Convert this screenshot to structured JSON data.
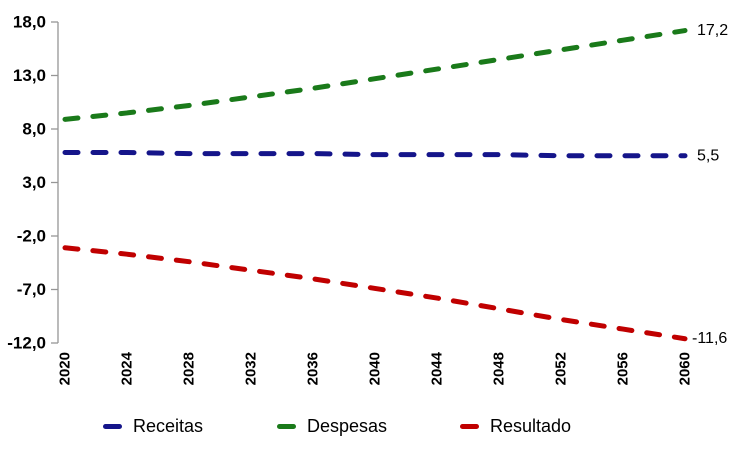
{
  "figure": {
    "background": "#ffffff"
  },
  "chart_data": {
    "type": "line",
    "title": "",
    "xlabel": "",
    "ylabel": "",
    "line_style": "dashed",
    "grid": false,
    "legend_position": "bottom",
    "axis_color": "#969696",
    "text_color": "#000000",
    "x": [
      2020,
      2024,
      2028,
      2032,
      2036,
      2040,
      2044,
      2048,
      2052,
      2056,
      2060
    ],
    "x_tick_labels": [
      "2020",
      "2024",
      "2028",
      "2032",
      "2036",
      "2040",
      "2044",
      "2048",
      "2052",
      "2056",
      "2060"
    ],
    "xlim": [
      2020,
      2060
    ],
    "ylim": [
      -12,
      18
    ],
    "y_ticks": [
      18,
      13,
      8,
      3,
      -2,
      -7,
      -12
    ],
    "y_tick_labels": [
      "18,0",
      "13,0",
      "8,0",
      "3,0",
      "-2,0",
      "-7,0",
      "-12,0"
    ],
    "series": [
      {
        "name": "Receitas",
        "color": "#15158a",
        "values": [
          5.8,
          5.8,
          5.7,
          5.7,
          5.7,
          5.6,
          5.6,
          5.6,
          5.5,
          5.5,
          5.5
        ],
        "end_label": "5,5"
      },
      {
        "name": "Despesas",
        "color": "#1a7a1a",
        "values": [
          8.9,
          9.5,
          10.2,
          11.0,
          11.8,
          12.7,
          13.6,
          14.5,
          15.4,
          16.3,
          17.2
        ],
        "end_label": "17,2"
      },
      {
        "name": "Resultado",
        "color": "#c00000",
        "values": [
          -3.1,
          -3.7,
          -4.4,
          -5.2,
          -6.0,
          -6.9,
          -7.8,
          -8.8,
          -9.8,
          -10.7,
          -11.6
        ],
        "end_label": "-11,6"
      }
    ]
  }
}
